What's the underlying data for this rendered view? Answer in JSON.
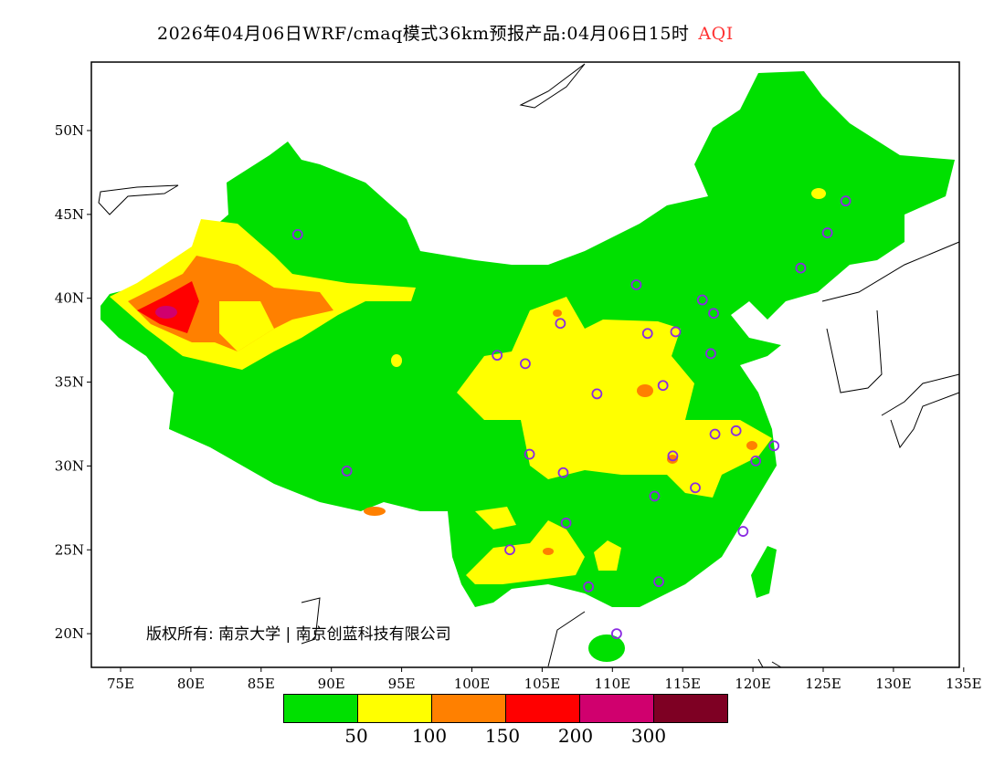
{
  "title": {
    "text": "2026年04月06日WRF/cmaq模式36km预报产品:04月06日15时",
    "variable": "AQI"
  },
  "axes": {
    "lon_ticks": [
      "75E",
      "80E",
      "85E",
      "90E",
      "95E",
      "100E",
      "105E",
      "110E",
      "115E",
      "120E",
      "125E",
      "130E",
      "135E"
    ],
    "lat_ticks": [
      "50N",
      "45N",
      "40N",
      "35N",
      "30N",
      "25N",
      "20N"
    ]
  },
  "legend": {
    "colors": [
      "#00e000",
      "#ffff00",
      "#ff8000",
      "#ff0000",
      "#d0006e",
      "#7e0023"
    ],
    "labels": [
      "50",
      "100",
      "150",
      "200",
      "300"
    ]
  },
  "copyright": "版权所有: 南京大学 | 南京创蓝科技有限公司",
  "stations": [
    [
      87.6,
      43.8
    ],
    [
      91.1,
      29.7
    ],
    [
      101.8,
      36.6
    ],
    [
      103.8,
      36.1
    ],
    [
      106.3,
      38.5
    ],
    [
      104.1,
      30.7
    ],
    [
      106.5,
      29.6
    ],
    [
      106.7,
      26.6
    ],
    [
      102.7,
      25.0
    ],
    [
      108.3,
      22.8
    ],
    [
      110.3,
      20.0
    ],
    [
      111.7,
      40.8
    ],
    [
      112.5,
      37.9
    ],
    [
      114.5,
      38.0
    ],
    [
      116.4,
      39.9
    ],
    [
      117.2,
      39.1
    ],
    [
      117.0,
      36.7
    ],
    [
      113.6,
      34.8
    ],
    [
      108.9,
      34.3
    ],
    [
      114.3,
      30.6
    ],
    [
      113.0,
      28.2
    ],
    [
      115.9,
      28.7
    ],
    [
      117.3,
      31.9
    ],
    [
      118.8,
      32.1
    ],
    [
      120.2,
      30.3
    ],
    [
      121.5,
      31.2
    ],
    [
      119.3,
      26.1
    ],
    [
      113.3,
      23.1
    ],
    [
      123.4,
      41.8
    ],
    [
      125.3,
      43.9
    ],
    [
      126.6,
      45.8
    ]
  ]
}
